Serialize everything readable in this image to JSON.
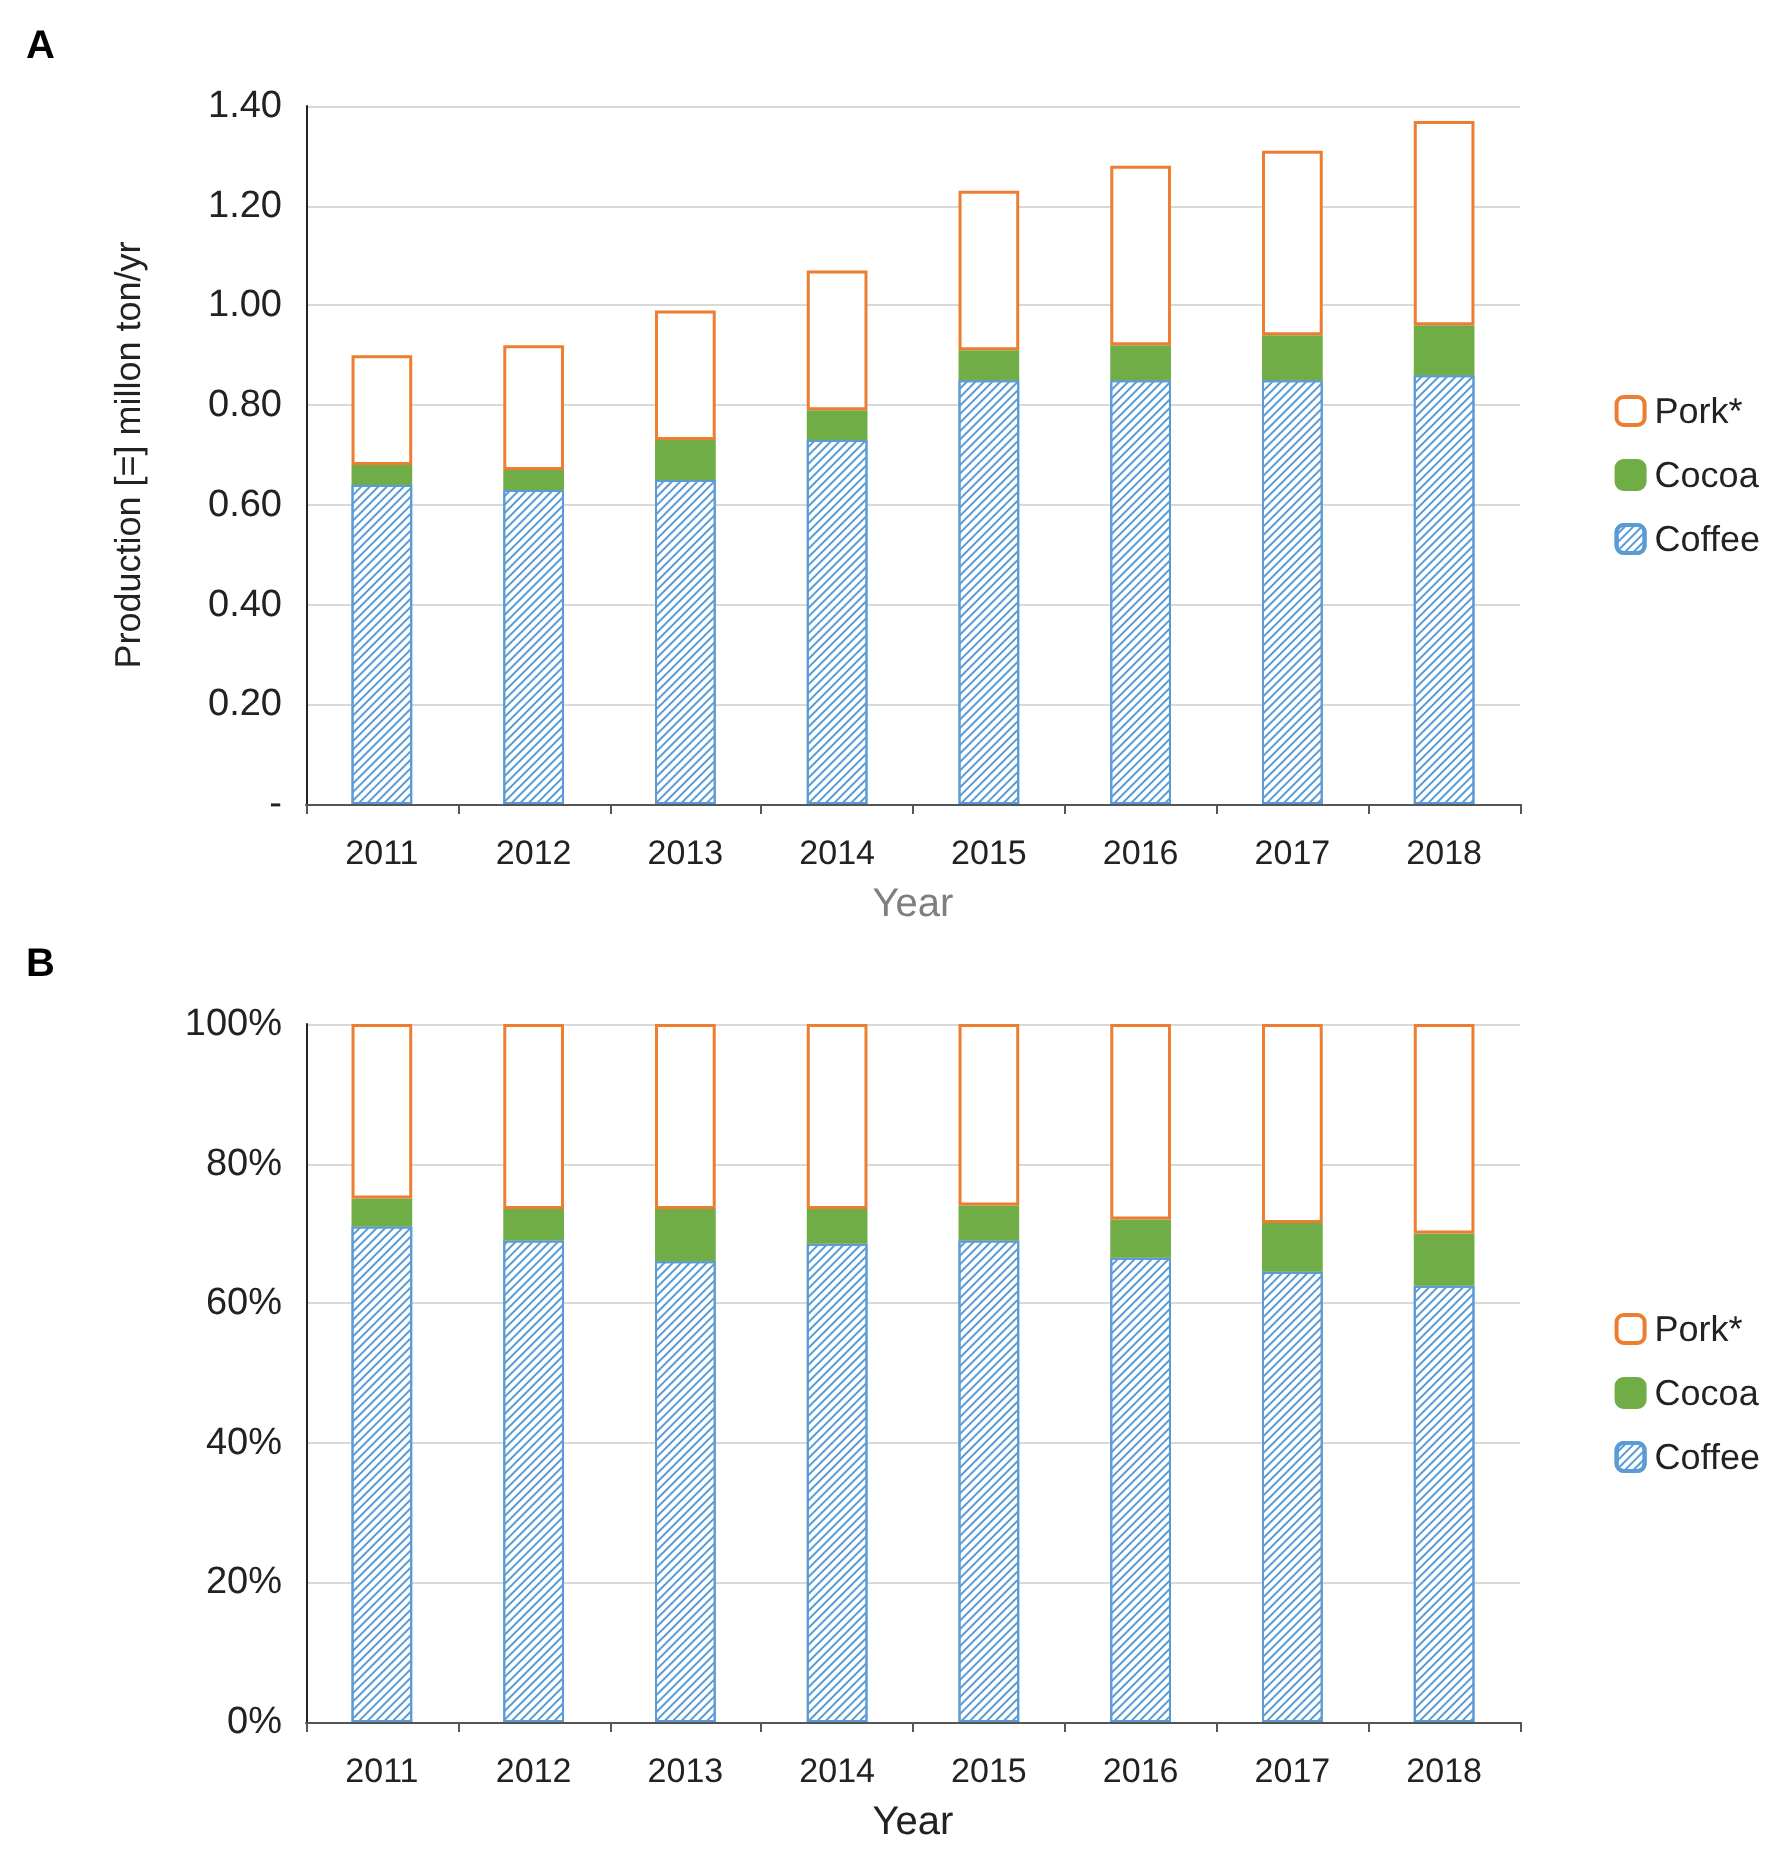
{
  "chart_data": [
    {
      "type": "bar",
      "title": "A",
      "xlabel": "Year",
      "ylabel": "Production [=] millon ton/yr",
      "stacked": true,
      "grid": "y",
      "legend": "right",
      "categories": [
        "2011",
        "2012",
        "2013",
        "2014",
        "2015",
        "2016",
        "2017",
        "2018"
      ],
      "ylim": [
        0,
        1.4
      ],
      "yticks": [
        {
          "value": 0,
          "label": "-"
        },
        {
          "value": 0.2,
          "label": "0.20"
        },
        {
          "value": 0.4,
          "label": "0.40"
        },
        {
          "value": 0.6,
          "label": "0.60"
        },
        {
          "value": 0.8,
          "label": "0.80"
        },
        {
          "value": 1.0,
          "label": "1.00"
        },
        {
          "value": 1.2,
          "label": "1.20"
        },
        {
          "value": 1.4,
          "label": "1.40"
        }
      ],
      "series": [
        {
          "name": "Coffee",
          "color": "#5b9bd5",
          "values": [
            0.64,
            0.63,
            0.65,
            0.73,
            0.85,
            0.85,
            0.85,
            0.86
          ]
        },
        {
          "name": "Cocoa",
          "color": "#70ad47",
          "values": [
            0.04,
            0.04,
            0.08,
            0.06,
            0.06,
            0.07,
            0.09,
            0.1
          ]
        },
        {
          "name": "Pork*",
          "color": "#ed7d31",
          "values": [
            0.22,
            0.25,
            0.26,
            0.28,
            0.32,
            0.36,
            0.37,
            0.41
          ]
        }
      ]
    },
    {
      "type": "bar",
      "title": "B",
      "xlabel": "Year",
      "stacked": true,
      "grid": "y",
      "legend": "right",
      "categories": [
        "2011",
        "2012",
        "2013",
        "2014",
        "2015",
        "2016",
        "2017",
        "2018"
      ],
      "ylim": [
        0,
        100
      ],
      "yticks": [
        {
          "value": 0,
          "label": "0%"
        },
        {
          "value": 20,
          "label": "20%"
        },
        {
          "value": 40,
          "label": "40%"
        },
        {
          "value": 60,
          "label": "60%"
        },
        {
          "value": 80,
          "label": "80%"
        },
        {
          "value": 100,
          "label": "100%"
        }
      ],
      "series": [
        {
          "name": "Coffee",
          "color": "#5b9bd5",
          "values": [
            71,
            69,
            66,
            68.5,
            69,
            66.5,
            64.5,
            62.5
          ]
        },
        {
          "name": "Cocoa",
          "color": "#70ad47",
          "values": [
            4,
            4.5,
            7.5,
            5,
            5,
            5.5,
            7,
            7.5
          ]
        },
        {
          "name": "Pork*",
          "color": "#ed7d31",
          "values": [
            25,
            26.5,
            26.5,
            26.5,
            26,
            28,
            28.5,
            30
          ]
        }
      ]
    }
  ]
}
